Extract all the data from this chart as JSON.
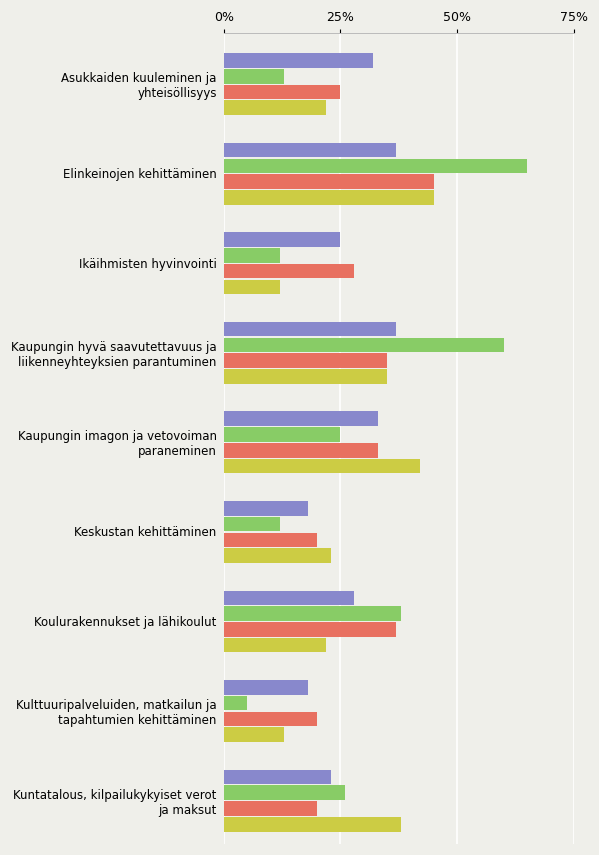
{
  "categories": [
    "Asukkaiden kuuleminen ja\nyhteisöllisyys",
    "Elinkeinojen kehittäminen",
    "Ikäihmisten hyvinvointi",
    "Kaupungin hyvä saavutettavuus ja\nliikenneyhteyksien parantuminen",
    "Kaupungin imagon ja vetovoiman\nparaneminen",
    "Keskustan kehittäminen",
    "Koulurakennukset ja lähikoulut",
    "Kulttuuripalveluiden, matkailun ja\ntapahtumien kehittäminen",
    "Kuntatalous, kilpailukykyiset verot\nja maksut"
  ],
  "series_colors": [
    "#8888cc",
    "#88cc66",
    "#e87060",
    "#cccc44"
  ],
  "values": [
    [
      32,
      13,
      25,
      22
    ],
    [
      37,
      65,
      45,
      45
    ],
    [
      25,
      12,
      28,
      12
    ],
    [
      37,
      60,
      35,
      35
    ],
    [
      33,
      25,
      33,
      42
    ],
    [
      18,
      12,
      20,
      23
    ],
    [
      28,
      38,
      37,
      22
    ],
    [
      18,
      5,
      20,
      13
    ],
    [
      23,
      26,
      20,
      38
    ]
  ],
  "xlim": [
    0,
    75
  ],
  "xticks": [
    0,
    25,
    50,
    75
  ],
  "xticklabels": [
    "0%",
    "25%",
    "50%",
    "75%"
  ],
  "background_color": "#efefea",
  "grid_color": "#ffffff",
  "label_fontsize": 8.5,
  "tick_fontsize": 9
}
